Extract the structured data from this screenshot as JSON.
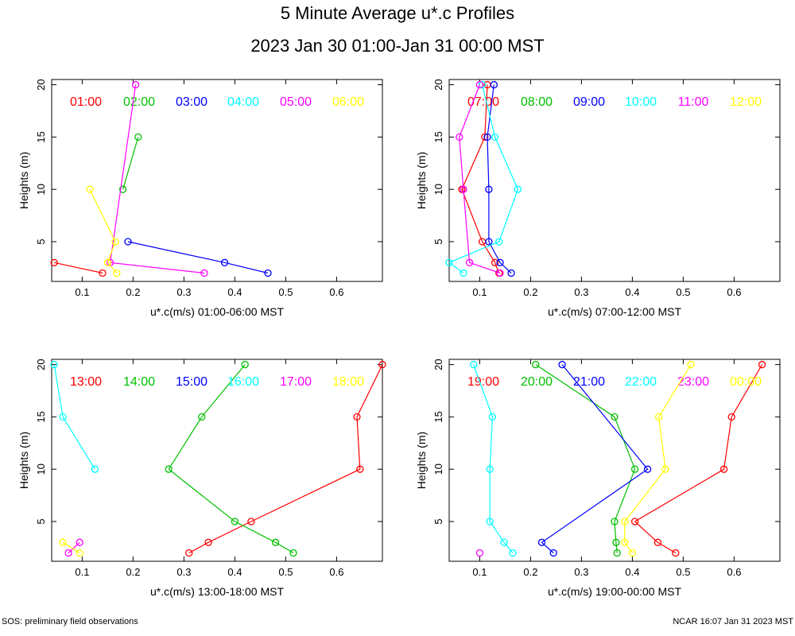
{
  "header": {
    "title": "5 Minute Average u*.c Profiles",
    "subtitle": "2023 Jan 30 01:00-Jan 31 00:00 MST"
  },
  "footer": {
    "left": "SOS: preliminary field observations",
    "right": "NCAR 16:07 Jan 31 2023 MST"
  },
  "chart_data": [
    {
      "type": "line",
      "xlabel": "u*.c(m/s) 01:00-06:00 MST",
      "ylabel": "Heights (m)",
      "xlim": [
        0.04,
        0.69
      ],
      "ylim": [
        1.2,
        20.5
      ],
      "xticks": [
        "0.1",
        "0.2",
        "0.3",
        "0.4",
        "0.5",
        "0.6"
      ],
      "yticks": [
        "5",
        "10",
        "15",
        "20"
      ],
      "legend_placement": "top",
      "series": [
        {
          "name": "01:00",
          "color": "#ff0000",
          "points": [
            [
              0.14,
              2
            ],
            [
              0.045,
              3
            ]
          ]
        },
        {
          "name": "02:00",
          "color": "#00c000",
          "points": [
            [
              0.18,
              10
            ],
            [
              0.21,
              15
            ]
          ]
        },
        {
          "name": "03:00",
          "color": "#0000ff",
          "points": [
            [
              0.465,
              2
            ],
            [
              0.38,
              3
            ],
            [
              0.19,
              5
            ]
          ]
        },
        {
          "name": "04:00",
          "color": "#00ffff",
          "points": []
        },
        {
          "name": "05:00",
          "color": "#ff00ff",
          "points": [
            [
              0.34,
              2
            ],
            [
              0.155,
              3
            ],
            [
              0.205,
              20
            ]
          ]
        },
        {
          "name": "06:00",
          "color": "#ffff00",
          "points": [
            [
              0.168,
              2
            ],
            [
              0.15,
              3
            ],
            [
              0.165,
              5
            ],
            [
              0.115,
              10
            ]
          ]
        }
      ]
    },
    {
      "type": "line",
      "xlabel": "u*.c(m/s) 07:00-12:00 MST",
      "ylabel": "Heights (m)",
      "xlim": [
        0.04,
        0.69
      ],
      "ylim": [
        1.2,
        20.5
      ],
      "xticks": [
        "0.1",
        "0.2",
        "0.3",
        "0.4",
        "0.5",
        "0.6"
      ],
      "yticks": [
        "5",
        "10",
        "15",
        "20"
      ],
      "legend_placement": "top",
      "series": [
        {
          "name": "07:00",
          "color": "#ff0000",
          "points": [
            [
              0.138,
              2
            ],
            [
              0.13,
              3
            ],
            [
              0.105,
              5
            ],
            [
              0.065,
              10
            ],
            [
              0.11,
              15
            ],
            [
              0.115,
              20
            ]
          ]
        },
        {
          "name": "08:00",
          "color": "#00c000",
          "points": []
        },
        {
          "name": "09:00",
          "color": "#0000ff",
          "points": [
            [
              0.162,
              2
            ],
            [
              0.14,
              3
            ],
            [
              0.118,
              5
            ],
            [
              0.118,
              10
            ],
            [
              0.115,
              15
            ],
            [
              0.128,
              20
            ]
          ]
        },
        {
          "name": "10:00",
          "color": "#00ffff",
          "points": [
            [
              0.068,
              2
            ],
            [
              0.04,
              3
            ],
            [
              0.138,
              5
            ],
            [
              0.175,
              10
            ],
            [
              0.13,
              15
            ],
            [
              0.105,
              20
            ]
          ]
        },
        {
          "name": "11:00",
          "color": "#ff00ff",
          "points": [
            [
              0.14,
              2
            ],
            [
              0.08,
              3
            ],
            [
              0.068,
              10
            ],
            [
              0.06,
              15
            ],
            [
              0.1,
              20
            ]
          ]
        },
        {
          "name": "12:00",
          "color": "#ffff00",
          "points": []
        }
      ]
    },
    {
      "type": "line",
      "xlabel": "u*.c(m/s) 13:00-18:00 MST",
      "ylabel": "Heights (m)",
      "xlim": [
        0.04,
        0.69
      ],
      "ylim": [
        1.2,
        20.5
      ],
      "xticks": [
        "0.1",
        "0.2",
        "0.3",
        "0.4",
        "0.5",
        "0.6"
      ],
      "yticks": [
        "5",
        "10",
        "15",
        "20"
      ],
      "legend_placement": "top",
      "series": [
        {
          "name": "13:00",
          "color": "#ff0000",
          "points": [
            [
              0.31,
              2
            ],
            [
              0.348,
              3
            ],
            [
              0.432,
              5
            ],
            [
              0.646,
              10
            ],
            [
              0.64,
              15
            ],
            [
              0.69,
              20
            ]
          ]
        },
        {
          "name": "14:00",
          "color": "#00c000",
          "points": [
            [
              0.515,
              2
            ],
            [
              0.48,
              3
            ],
            [
              0.4,
              5
            ],
            [
              0.27,
              10
            ],
            [
              0.335,
              15
            ],
            [
              0.42,
              20
            ]
          ]
        },
        {
          "name": "15:00",
          "color": "#0000ff",
          "points": []
        },
        {
          "name": "16:00",
          "color": "#00ffff",
          "points": [
            [
              0.125,
              10
            ],
            [
              0.062,
              15
            ],
            [
              0.045,
              20
            ]
          ]
        },
        {
          "name": "17:00",
          "color": "#ff00ff",
          "points": [
            [
              0.073,
              2
            ],
            [
              0.095,
              3
            ]
          ]
        },
        {
          "name": "18:00",
          "color": "#ffff00",
          "points": [
            [
              0.095,
              2
            ],
            [
              0.062,
              3
            ]
          ]
        }
      ]
    },
    {
      "type": "line",
      "xlabel": "u*.c(m/s) 19:00-00:00 MST",
      "ylabel": "Heights (m)",
      "xlim": [
        0.04,
        0.69
      ],
      "ylim": [
        1.2,
        20.5
      ],
      "xticks": [
        "0.1",
        "0.2",
        "0.3",
        "0.4",
        "0.5",
        "0.6"
      ],
      "yticks": [
        "5",
        "10",
        "15",
        "20"
      ],
      "legend_placement": "top",
      "series": [
        {
          "name": "19:00",
          "color": "#ff0000",
          "points": [
            [
              0.485,
              2
            ],
            [
              0.45,
              3
            ],
            [
              0.405,
              5
            ],
            [
              0.58,
              10
            ],
            [
              0.595,
              15
            ],
            [
              0.655,
              20
            ]
          ]
        },
        {
          "name": "20:00",
          "color": "#00c000",
          "points": [
            [
              0.37,
              2
            ],
            [
              0.368,
              3
            ],
            [
              0.365,
              5
            ],
            [
              0.405,
              10
            ],
            [
              0.365,
              15
            ],
            [
              0.21,
              20
            ]
          ]
        },
        {
          "name": "21:00",
          "color": "#0000ff",
          "points": [
            [
              0.245,
              2
            ],
            [
              0.222,
              3
            ],
            [
              0.43,
              10
            ],
            [
              0.262,
              20
            ]
          ]
        },
        {
          "name": "22:00",
          "color": "#00ffff",
          "points": [
            [
              0.165,
              2
            ],
            [
              0.148,
              3
            ],
            [
              0.12,
              5
            ],
            [
              0.12,
              10
            ],
            [
              0.125,
              15
            ],
            [
              0.088,
              20
            ]
          ]
        },
        {
          "name": "23:00",
          "color": "#ff00ff",
          "points": [
            [
              0.1,
              2
            ]
          ]
        },
        {
          "name": "00:00",
          "color": "#ffff00",
          "points": [
            [
              0.4,
              2
            ],
            [
              0.385,
              3
            ],
            [
              0.385,
              5
            ],
            [
              0.465,
              10
            ],
            [
              0.452,
              15
            ],
            [
              0.515,
              20
            ]
          ]
        }
      ]
    }
  ]
}
